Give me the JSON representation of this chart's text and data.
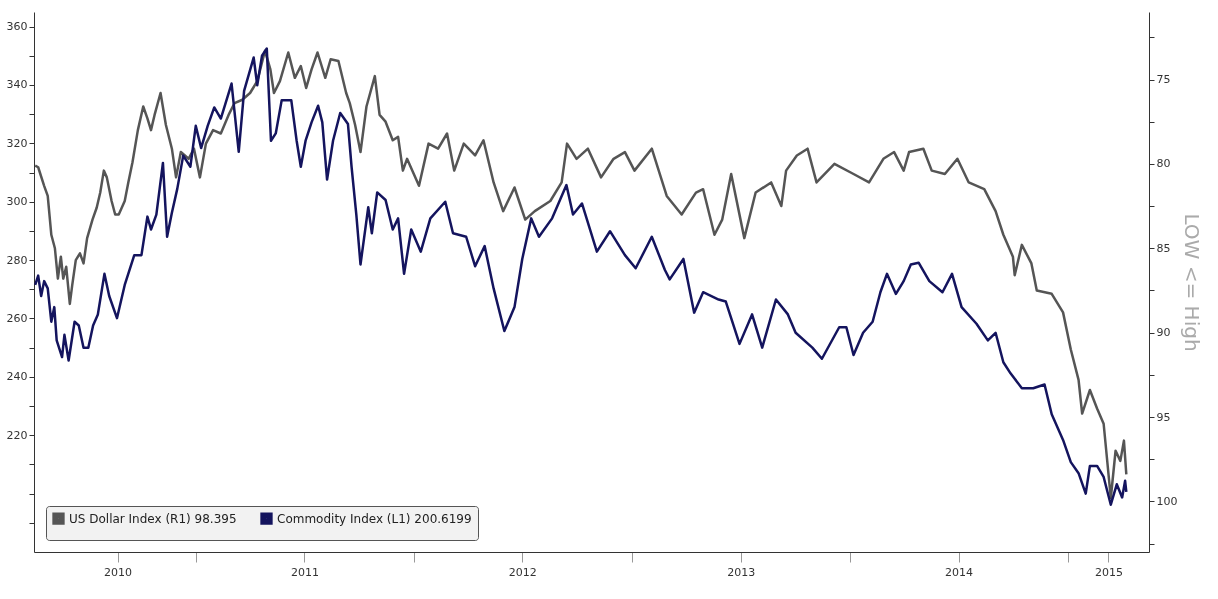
{
  "chart_data": {
    "type": "line",
    "y2label": "LOW <= High",
    "legend": "bottom left",
    "xlim": [
      "2010-04-05",
      "2015-05-17"
    ],
    "xticks": [
      {
        "value": "2010-08-23",
        "label": "2010"
      },
      {
        "value": "2011-01-01",
        "label": null
      },
      {
        "value": "2011-07-02",
        "label": "2011"
      },
      {
        "value": "2012-01-01",
        "label": null
      },
      {
        "value": "2012-07-01",
        "label": "2012"
      },
      {
        "value": "2013-01-01",
        "label": null
      },
      {
        "value": "2013-07-02",
        "label": "2013"
      },
      {
        "value": "2014-01-01",
        "label": null
      },
      {
        "value": "2014-07-02",
        "label": "2014"
      },
      {
        "value": "2015-01-01",
        "label": null
      },
      {
        "value": "2015-03-10",
        "label": "2015"
      }
    ],
    "ylim": [
      180,
      365
    ],
    "yticks": [
      {
        "value": 190,
        "label": null
      },
      {
        "value": 200,
        "label": null
      },
      {
        "value": 210,
        "label": null
      },
      220,
      {
        "value": 230,
        "label": null
      },
      240,
      {
        "value": 250,
        "label": null
      },
      260,
      {
        "value": 270,
        "label": null
      },
      280,
      {
        "value": 290,
        "label": null
      },
      300,
      {
        "value": 310,
        "label": null
      },
      320,
      {
        "value": 330,
        "label": null
      },
      340,
      {
        "value": 350,
        "label": null
      },
      360
    ],
    "y2lim": [
      103,
      71
    ],
    "y2ticks": [
      {
        "value": 102.5,
        "label": null
      },
      100,
      {
        "value": 97.5,
        "label": null
      },
      95,
      {
        "value": 92.5,
        "label": null
      },
      90,
      {
        "value": 87.5,
        "label": null
      },
      85,
      {
        "value": 82.5,
        "label": null
      },
      80,
      {
        "value": 77.5,
        "label": null
      },
      75,
      {
        "value": 72.5,
        "label": null
      }
    ],
    "series": [
      {
        "name": "US Dollar Index (R1) 98.395",
        "color": "#555555",
        "axis": "y2",
        "x": [
          "2010-04-07",
          "2010-04-12",
          "2010-04-22",
          "2010-04-28",
          "2010-05-04",
          "2010-05-10",
          "2010-05-15",
          "2010-05-20",
          "2010-05-24",
          "2010-05-29",
          "2010-06-04",
          "2010-06-08",
          "2010-06-14",
          "2010-06-21",
          "2010-06-27",
          "2010-07-03",
          "2010-07-12",
          "2010-07-19",
          "2010-07-25",
          "2010-07-31",
          "2010-08-05",
          "2010-08-13",
          "2010-08-19",
          "2010-08-25",
          "2010-09-04",
          "2010-09-10",
          "2010-09-17",
          "2010-09-26",
          "2010-10-05",
          "2010-10-12",
          "2010-10-18",
          "2010-10-24",
          "2010-11-03",
          "2010-11-12",
          "2010-11-22",
          "2010-11-29",
          "2010-12-07",
          "2010-12-20",
          "2010-12-29",
          "2011-01-08",
          "2011-01-18",
          "2011-01-30",
          "2011-02-12",
          "2011-02-25",
          "2011-03-07",
          "2011-03-20",
          "2011-04-02",
          "2011-04-14",
          "2011-04-27",
          "2011-05-06",
          "2011-05-12",
          "2011-05-22",
          "2011-06-05",
          "2011-06-16",
          "2011-06-26",
          "2011-07-05",
          "2011-07-14",
          "2011-07-24",
          "2011-08-06",
          "2011-08-15",
          "2011-08-28",
          "2011-09-10",
          "2011-09-16",
          "2011-09-25",
          "2011-10-04",
          "2011-10-14",
          "2011-10-28",
          "2011-11-05",
          "2011-11-15",
          "2011-11-27",
          "2011-12-06",
          "2011-12-14",
          "2011-12-21",
          "2012-01-10",
          "2012-01-26",
          "2012-02-11",
          "2012-02-26",
          "2012-03-09",
          "2012-03-25",
          "2012-04-13",
          "2012-04-27",
          "2012-05-14",
          "2012-05-30",
          "2012-06-18",
          "2012-07-06",
          "2012-07-22",
          "2012-08-17",
          "2012-09-05",
          "2012-09-14",
          "2012-09-30",
          "2012-10-19",
          "2012-11-10",
          "2012-12-01",
          "2012-12-20",
          "2013-01-05",
          "2013-02-03",
          "2013-02-28",
          "2013-03-25",
          "2013-04-18",
          "2013-04-30",
          "2013-05-19",
          "2013-06-01",
          "2013-06-16",
          "2013-07-08",
          "2013-07-27",
          "2013-08-22",
          "2013-09-08",
          "2013-09-16",
          "2013-10-04",
          "2013-10-22",
          "2013-11-06",
          "2013-12-06",
          "2014-01-07",
          "2014-02-02",
          "2014-02-26",
          "2014-03-16",
          "2014-04-01",
          "2014-04-10",
          "2014-05-04",
          "2014-05-18",
          "2014-06-09",
          "2014-06-30",
          "2014-07-19",
          "2014-08-14",
          "2014-09-02",
          "2014-09-15",
          "2014-10-01",
          "2014-10-04",
          "2014-10-16",
          "2014-11-01",
          "2014-11-10",
          "2014-12-05",
          "2014-12-24",
          "2015-01-06",
          "2015-01-19",
          "2015-01-25",
          "2015-02-07",
          "2015-02-19",
          "2015-03-02",
          "2015-03-14",
          "2015-03-22",
          "2015-03-30",
          "2015-04-05",
          "2015-04-09"
        ],
        "values": [
          80.1,
          80.2,
          81.3,
          81.9,
          84.2,
          85.0,
          86.8,
          85.5,
          86.8,
          86.1,
          88.3,
          87.2,
          85.7,
          85.3,
          85.9,
          84.4,
          83.3,
          82.6,
          81.7,
          80.4,
          80.8,
          82.2,
          83.0,
          83.0,
          82.2,
          81.1,
          79.9,
          78.0,
          76.6,
          77.3,
          78.0,
          77.1,
          75.8,
          77.7,
          79.1,
          80.8,
          79.3,
          79.7,
          79.1,
          80.8,
          78.8,
          78.0,
          78.2,
          77.1,
          76.4,
          76.2,
          75.8,
          75.1,
          73.3,
          74.4,
          75.8,
          75.1,
          73.4,
          74.9,
          74.2,
          75.5,
          74.4,
          73.4,
          74.9,
          73.8,
          73.9,
          75.8,
          76.4,
          77.7,
          79.3,
          76.6,
          74.8,
          77.1,
          77.5,
          78.6,
          78.4,
          80.4,
          79.7,
          81.3,
          78.8,
          79.1,
          78.2,
          80.4,
          78.8,
          79.5,
          78.6,
          81.1,
          82.8,
          81.4,
          83.3,
          82.8,
          82.2,
          81.1,
          78.8,
          79.7,
          79.1,
          80.8,
          79.7,
          79.3,
          80.4,
          79.1,
          81.9,
          83.0,
          81.7,
          81.5,
          84.2,
          83.3,
          80.6,
          84.4,
          81.7,
          81.1,
          82.5,
          80.4,
          79.5,
          79.1,
          81.1,
          80.0,
          80.6,
          81.1,
          79.7,
          79.3,
          80.4,
          79.3,
          79.1,
          80.4,
          80.6,
          79.7,
          81.1,
          81.5,
          82.8,
          84.2,
          85.5,
          86.6,
          84.8,
          85.9,
          87.5,
          87.7,
          88.8,
          91.0,
          92.8,
          94.8,
          93.4,
          94.5,
          95.4,
          99.8,
          97.0,
          97.6,
          96.4,
          98.4
        ]
      },
      {
        "name": "Commodity Index (L1) 200.6199",
        "color": "#14145e",
        "axis": "y",
        "x": [
          "2010-04-07",
          "2010-04-12",
          "2010-04-17",
          "2010-04-22",
          "2010-04-28",
          "2010-05-04",
          "2010-05-09",
          "2010-05-13",
          "2010-05-22",
          "2010-05-26",
          "2010-06-02",
          "2010-06-12",
          "2010-06-19",
          "2010-06-27",
          "2010-07-05",
          "2010-07-13",
          "2010-07-21",
          "2010-08-01",
          "2010-08-09",
          "2010-08-22",
          "2010-09-04",
          "2010-09-20",
          "2010-10-02",
          "2010-10-12",
          "2010-10-18",
          "2010-10-27",
          "2010-11-07",
          "2010-11-14",
          "2010-11-22",
          "2010-12-01",
          "2010-12-11",
          "2010-12-23",
          "2011-01-01",
          "2011-01-10",
          "2011-01-21",
          "2011-02-01",
          "2011-02-12",
          "2011-03-02",
          "2011-03-14",
          "2011-03-23",
          "2011-04-08",
          "2011-04-14",
          "2011-04-22",
          "2011-04-30",
          "2011-05-07",
          "2011-05-15",
          "2011-05-25",
          "2011-06-10",
          "2011-06-19",
          "2011-06-26",
          "2011-07-04",
          "2011-07-14",
          "2011-07-25",
          "2011-08-01",
          "2011-08-09",
          "2011-08-19",
          "2011-08-31",
          "2011-09-13",
          "2011-09-19",
          "2011-09-27",
          "2011-10-04",
          "2011-10-17",
          "2011-10-23",
          "2011-11-01",
          "2011-11-15",
          "2011-11-27",
          "2011-12-06",
          "2011-12-16",
          "2011-12-28",
          "2012-01-13",
          "2012-01-29",
          "2012-02-23",
          "2012-03-07",
          "2012-03-29",
          "2012-04-13",
          "2012-04-29",
          "2012-05-14",
          "2012-06-01",
          "2012-06-18",
          "2012-07-01",
          "2012-07-16",
          "2012-07-29",
          "2012-08-20",
          "2012-09-13",
          "2012-09-24",
          "2012-10-09",
          "2012-11-03",
          "2012-11-25",
          "2012-12-20",
          "2013-01-07",
          "2013-02-03",
          "2013-02-25",
          "2013-03-05",
          "2013-03-28",
          "2013-04-15",
          "2013-04-30",
          "2013-05-26",
          "2013-06-07",
          "2013-06-30",
          "2013-07-21",
          "2013-08-07",
          "2013-08-30",
          "2013-09-19",
          "2013-10-02",
          "2013-10-30",
          "2013-11-15",
          "2013-12-14",
          "2013-12-26",
          "2014-01-07",
          "2014-01-23",
          "2014-02-08",
          "2014-02-21",
          "2014-03-04",
          "2014-03-19",
          "2014-04-01",
          "2014-04-13",
          "2014-04-26",
          "2014-05-14",
          "2014-06-05",
          "2014-06-21",
          "2014-07-07",
          "2014-08-01",
          "2014-08-20",
          "2014-09-02",
          "2014-09-15",
          "2014-09-27",
          "2014-10-16",
          "2014-11-04",
          "2014-11-23",
          "2014-12-05",
          "2014-12-24",
          "2015-01-06",
          "2015-01-19",
          "2015-01-31",
          "2015-02-07",
          "2015-02-19",
          "2015-03-02",
          "2015-03-14",
          "2015-03-24",
          "2015-04-02",
          "2015-04-07",
          "2015-04-09"
        ],
        "values": [
          271.5,
          274.7,
          267.7,
          272.8,
          270.3,
          258.9,
          263.9,
          252.5,
          246.8,
          254.4,
          245.6,
          258.9,
          257.6,
          250.0,
          250.0,
          257.6,
          261.4,
          275.3,
          267.7,
          260.1,
          271.5,
          281.7,
          281.7,
          294.9,
          290.5,
          295.6,
          313.3,
          288.0,
          296.2,
          304.4,
          315.8,
          312.0,
          326.0,
          318.4,
          326.0,
          332.3,
          328.5,
          340.5,
          317.1,
          338.0,
          349.4,
          339.9,
          350.0,
          352.5,
          320.9,
          323.4,
          334.8,
          334.8,
          320.9,
          312.0,
          320.9,
          327.2,
          332.9,
          327.2,
          307.6,
          320.9,
          330.4,
          326.6,
          312.0,
          295.6,
          278.5,
          298.1,
          289.2,
          303.2,
          300.6,
          290.5,
          294.3,
          275.3,
          290.5,
          282.9,
          294.3,
          300.0,
          289.2,
          288.0,
          277.9,
          284.8,
          270.3,
          255.7,
          263.9,
          280.4,
          294.3,
          288.0,
          294.3,
          305.7,
          295.6,
          299.4,
          282.9,
          289.9,
          281.7,
          277.2,
          288.0,
          276.6,
          273.4,
          280.4,
          262.0,
          269.0,
          266.5,
          265.8,
          251.3,
          261.4,
          250.0,
          266.5,
          261.4,
          255.1,
          250.0,
          246.2,
          257.0,
          257.0,
          247.5,
          255.1,
          258.9,
          269.0,
          275.3,
          268.4,
          272.8,
          278.5,
          279.1,
          272.8,
          269.0,
          275.3,
          263.9,
          258.2,
          252.5,
          255.1,
          245.0,
          241.2,
          236.1,
          236.1,
          237.4,
          227.2,
          218.4,
          210.8,
          207.0,
          200.0,
          209.5,
          209.5,
          205.7,
          196.2,
          203.2,
          198.7,
          204.4,
          200.6
        ]
      }
    ]
  }
}
